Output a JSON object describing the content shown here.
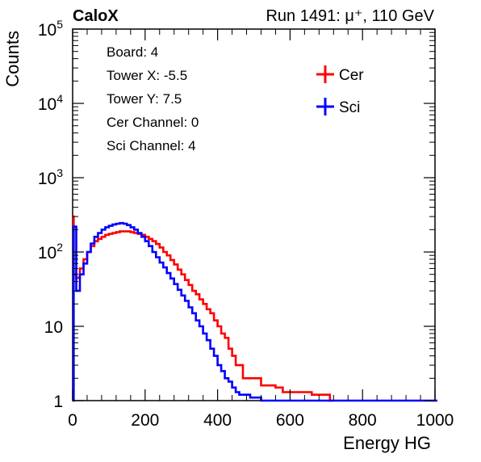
{
  "header": {
    "experiment": "CaloX",
    "run_label": "Run 1491:   μ⁺, 110 GeV"
  },
  "info_box": {
    "lines": [
      "Board: 4",
      "Tower X: -5.5",
      "Tower Y: 7.5",
      "Cer Channel: 0",
      "Sci Channel: 4"
    ]
  },
  "chart_data": {
    "type": "line",
    "title": "",
    "xlabel": "Energy HG",
    "ylabel": "Counts",
    "xlim": [
      0,
      1000
    ],
    "ylim": [
      1,
      100000
    ],
    "yscale": "log",
    "x_ticks": [
      0,
      200,
      400,
      600,
      800,
      1000
    ],
    "y_ticks": [
      {
        "value": 1,
        "base": "1",
        "exp": ""
      },
      {
        "value": 10,
        "base": "10",
        "exp": ""
      },
      {
        "value": 100,
        "base": "10",
        "exp": "2"
      },
      {
        "value": 1000,
        "base": "10",
        "exp": "3"
      },
      {
        "value": 10000,
        "base": "10",
        "exp": "4"
      },
      {
        "value": 100000,
        "base": "10",
        "exp": "5"
      }
    ],
    "legend_position": "top-right",
    "series": [
      {
        "name": "Cer",
        "color": "#ff0000",
        "x": [
          0,
          3,
          10,
          20,
          30,
          40,
          50,
          60,
          70,
          80,
          90,
          100,
          110,
          120,
          130,
          140,
          150,
          160,
          170,
          180,
          190,
          200,
          210,
          220,
          230,
          240,
          250,
          260,
          270,
          280,
          290,
          300,
          310,
          320,
          330,
          340,
          350,
          360,
          370,
          380,
          390,
          400,
          410,
          420,
          430,
          440,
          450,
          460,
          470,
          480,
          490,
          500,
          510,
          520,
          530,
          540,
          550,
          560,
          570,
          580,
          590,
          600,
          660,
          670,
          680,
          690,
          700,
          710
        ],
        "y": [
          300,
          50,
          45,
          60,
          80,
          100,
          120,
          140,
          150,
          160,
          170,
          175,
          180,
          185,
          190,
          190,
          190,
          185,
          180,
          175,
          170,
          160,
          150,
          140,
          128,
          115,
          100,
          90,
          78,
          68,
          58,
          50,
          42,
          36,
          30,
          27,
          23,
          20,
          17,
          15,
          12,
          10,
          8,
          7,
          5,
          4,
          3,
          3,
          2,
          2,
          2,
          2,
          2,
          1.6,
          1.6,
          1.6,
          1.6,
          1.5,
          1.5,
          1.3,
          1.3,
          1.3,
          1.2,
          1.2,
          1.2,
          1.2,
          1.2,
          1
        ]
      },
      {
        "name": "Sci",
        "color": "#0000ff",
        "x": [
          0,
          3,
          10,
          20,
          30,
          40,
          50,
          60,
          70,
          80,
          90,
          100,
          110,
          120,
          130,
          140,
          150,
          160,
          170,
          180,
          190,
          200,
          210,
          220,
          230,
          240,
          250,
          260,
          270,
          280,
          290,
          300,
          310,
          320,
          330,
          340,
          350,
          360,
          370,
          380,
          390,
          400,
          410,
          420,
          430,
          440,
          450,
          460,
          470,
          480,
          490,
          500,
          510,
          520,
          530,
          540,
          550,
          560,
          570,
          580,
          590,
          600,
          1000
        ],
        "y": [
          1,
          220,
          30,
          50,
          70,
          100,
          130,
          160,
          180,
          200,
          215,
          225,
          235,
          240,
          245,
          240,
          230,
          215,
          200,
          180,
          160,
          140,
          120,
          100,
          85,
          72,
          62,
          52,
          44,
          37,
          31,
          26,
          22,
          18,
          15,
          12,
          10,
          8,
          6.5,
          5,
          4,
          3,
          2.5,
          2,
          1.8,
          1.5,
          1.3,
          1.2,
          1.2,
          1.2,
          1.1,
          1.1,
          1.1,
          1,
          1,
          1,
          1,
          1,
          1,
          1,
          1,
          1,
          1
        ]
      }
    ]
  }
}
